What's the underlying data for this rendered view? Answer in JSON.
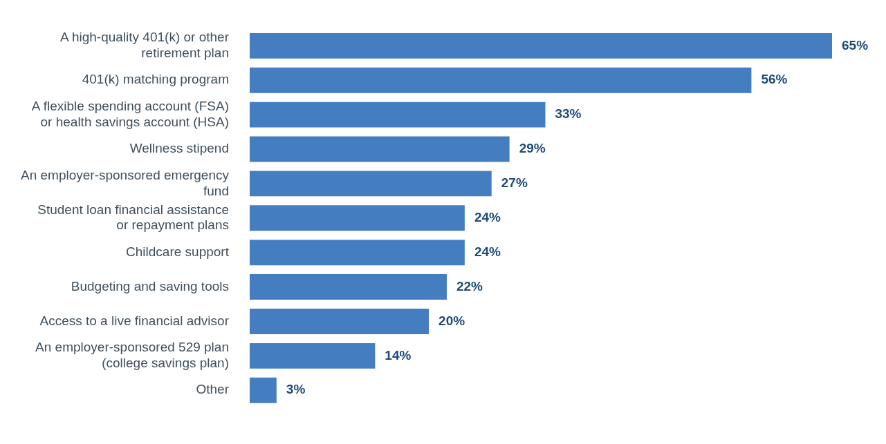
{
  "chart_data": {
    "type": "bar",
    "orientation": "horizontal",
    "categories": [
      "A high-quality 401(k) or other retirement plan",
      "401(k) matching program",
      "A flexible spending account (FSA) or health savings account (HSA)",
      "Wellness stipend",
      "An employer-sponsored emergency fund",
      "Student loan financial assistance or repayment plans",
      "Childcare support",
      "Budgeting and saving tools",
      "Access to a live financial advisor",
      "An employer-sponsored 529 plan (college savings plan)",
      "Other"
    ],
    "values": [
      65,
      56,
      33,
      29,
      27,
      24,
      24,
      22,
      20,
      14,
      3
    ],
    "value_labels": [
      "65%",
      "56%",
      "33%",
      "29%",
      "27%",
      "24%",
      "24%",
      "22%",
      "20%",
      "14%",
      "3%"
    ],
    "color": "#447ec0",
    "xlim": [
      0,
      65
    ],
    "grid": false,
    "legend": false
  }
}
